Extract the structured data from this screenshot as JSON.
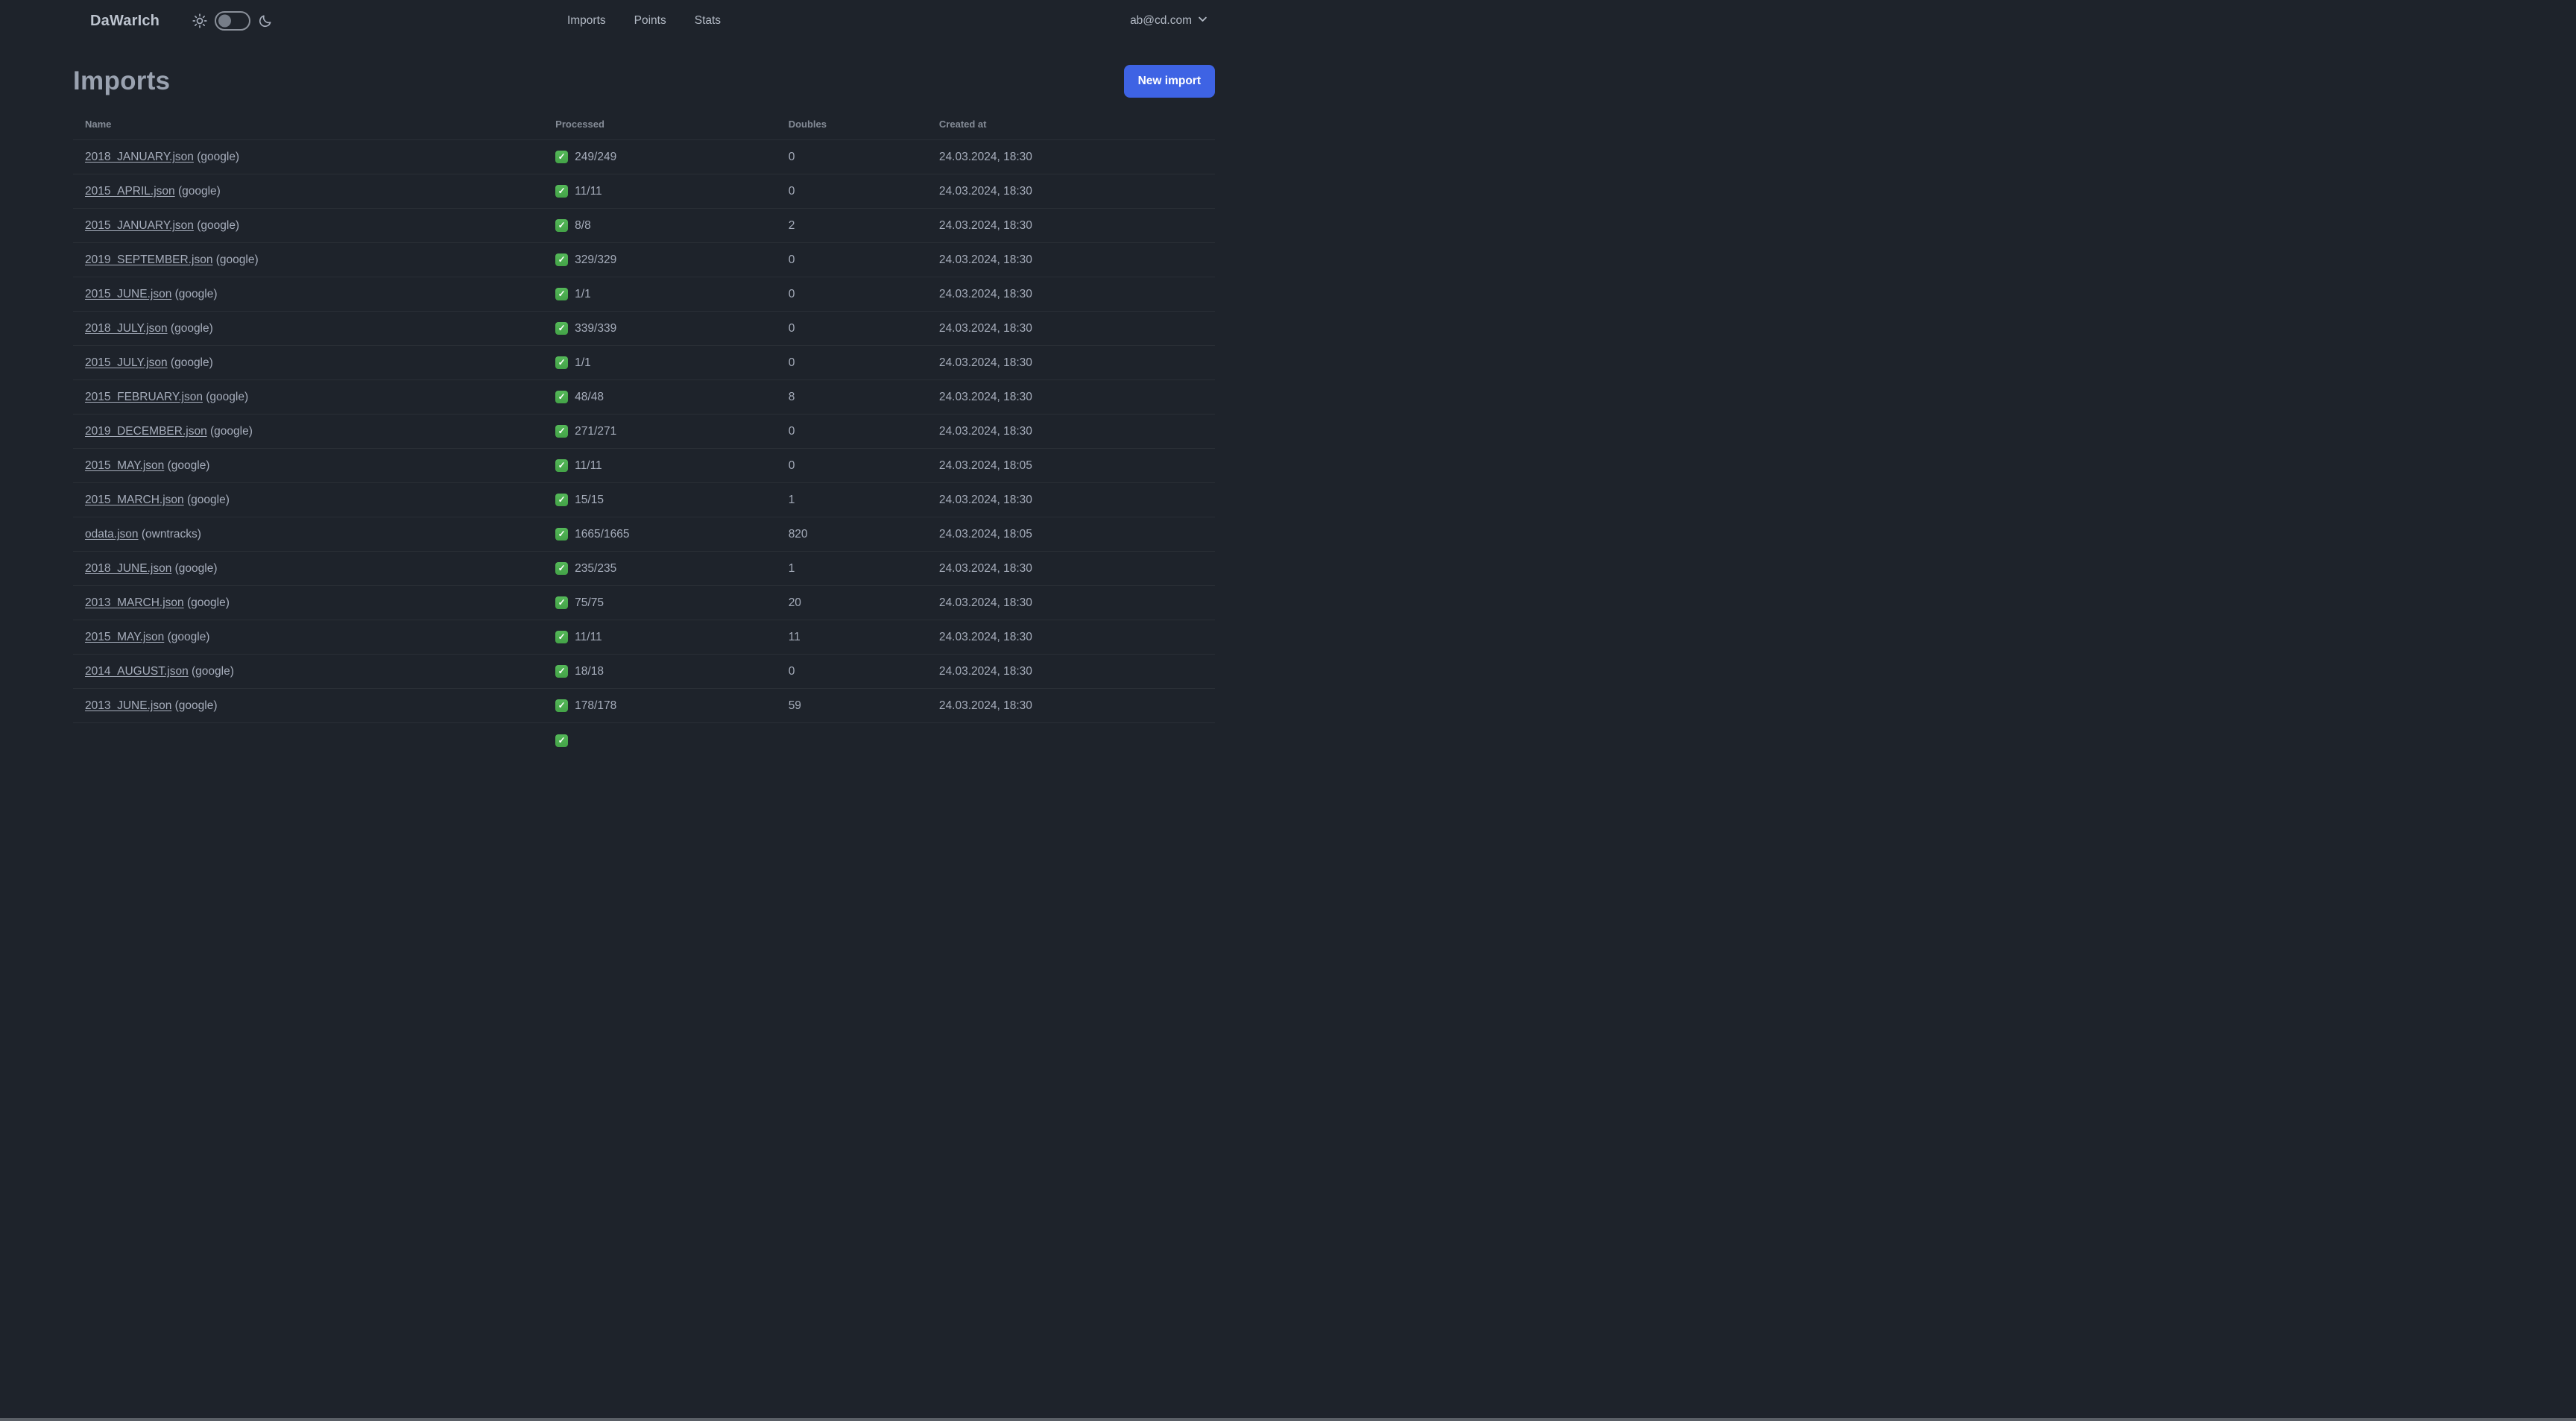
{
  "app": {
    "name": "DaWarIch"
  },
  "nav": {
    "items": [
      {
        "label": "Imports"
      },
      {
        "label": "Points"
      },
      {
        "label": "Stats"
      }
    ],
    "account_email": "ab@cd.com",
    "icons": [
      "sun-icon",
      "theme-toggle",
      "moon-icon",
      "chevron-down-icon"
    ]
  },
  "page": {
    "title": "Imports",
    "new_import_label": "New import"
  },
  "table": {
    "columns": [
      "Name",
      "Processed",
      "Doubles",
      "Created at"
    ],
    "rows": [
      {
        "file": "2018_JANUARY.json",
        "source": "(google)",
        "processed": "249/249",
        "doubles": "0",
        "created_at": "24.03.2024, 18:30"
      },
      {
        "file": "2015_APRIL.json",
        "source": "(google)",
        "processed": "11/11",
        "doubles": "0",
        "created_at": "24.03.2024, 18:30"
      },
      {
        "file": "2015_JANUARY.json",
        "source": "(google)",
        "processed": "8/8",
        "doubles": "2",
        "created_at": "24.03.2024, 18:30"
      },
      {
        "file": "2019_SEPTEMBER.json",
        "source": "(google)",
        "processed": "329/329",
        "doubles": "0",
        "created_at": "24.03.2024, 18:30"
      },
      {
        "file": "2015_JUNE.json",
        "source": "(google)",
        "processed": "1/1",
        "doubles": "0",
        "created_at": "24.03.2024, 18:30"
      },
      {
        "file": "2018_JULY.json",
        "source": "(google)",
        "processed": "339/339",
        "doubles": "0",
        "created_at": "24.03.2024, 18:30"
      },
      {
        "file": "2015_JULY.json",
        "source": "(google)",
        "processed": "1/1",
        "doubles": "0",
        "created_at": "24.03.2024, 18:30"
      },
      {
        "file": "2015_FEBRUARY.json",
        "source": "(google)",
        "processed": "48/48",
        "doubles": "8",
        "created_at": "24.03.2024, 18:30"
      },
      {
        "file": "2019_DECEMBER.json",
        "source": "(google)",
        "processed": "271/271",
        "doubles": "0",
        "created_at": "24.03.2024, 18:30"
      },
      {
        "file": "2015_MAY.json",
        "source": "(google)",
        "processed": "11/11",
        "doubles": "0",
        "created_at": "24.03.2024, 18:05"
      },
      {
        "file": "2015_MARCH.json",
        "source": "(google)",
        "processed": "15/15",
        "doubles": "1",
        "created_at": "24.03.2024, 18:30"
      },
      {
        "file": "odata.json",
        "source": "(owntracks)",
        "processed": "1665/1665",
        "doubles": "820",
        "created_at": "24.03.2024, 18:05"
      },
      {
        "file": "2018_JUNE.json",
        "source": "(google)",
        "processed": "235/235",
        "doubles": "1",
        "created_at": "24.03.2024, 18:30"
      },
      {
        "file": "2013_MARCH.json",
        "source": "(google)",
        "processed": "75/75",
        "doubles": "20",
        "created_at": "24.03.2024, 18:30"
      },
      {
        "file": "2015_MAY.json",
        "source": "(google)",
        "processed": "11/11",
        "doubles": "11",
        "created_at": "24.03.2024, 18:30"
      },
      {
        "file": "2014_AUGUST.json",
        "source": "(google)",
        "processed": "18/18",
        "doubles": "0",
        "created_at": "24.03.2024, 18:30"
      },
      {
        "file": "2013_JUNE.json",
        "source": "(google)",
        "processed": "178/178",
        "doubles": "59",
        "created_at": "24.03.2024, 18:30"
      }
    ],
    "partial_row_at_bottom": true,
    "status_icon": "check-icon",
    "status_glyph": "✓"
  },
  "colors": {
    "background": "#1e232b",
    "accent_button": "#3e63e4",
    "success_check": "#4caf50",
    "text": "#a6adbb"
  }
}
